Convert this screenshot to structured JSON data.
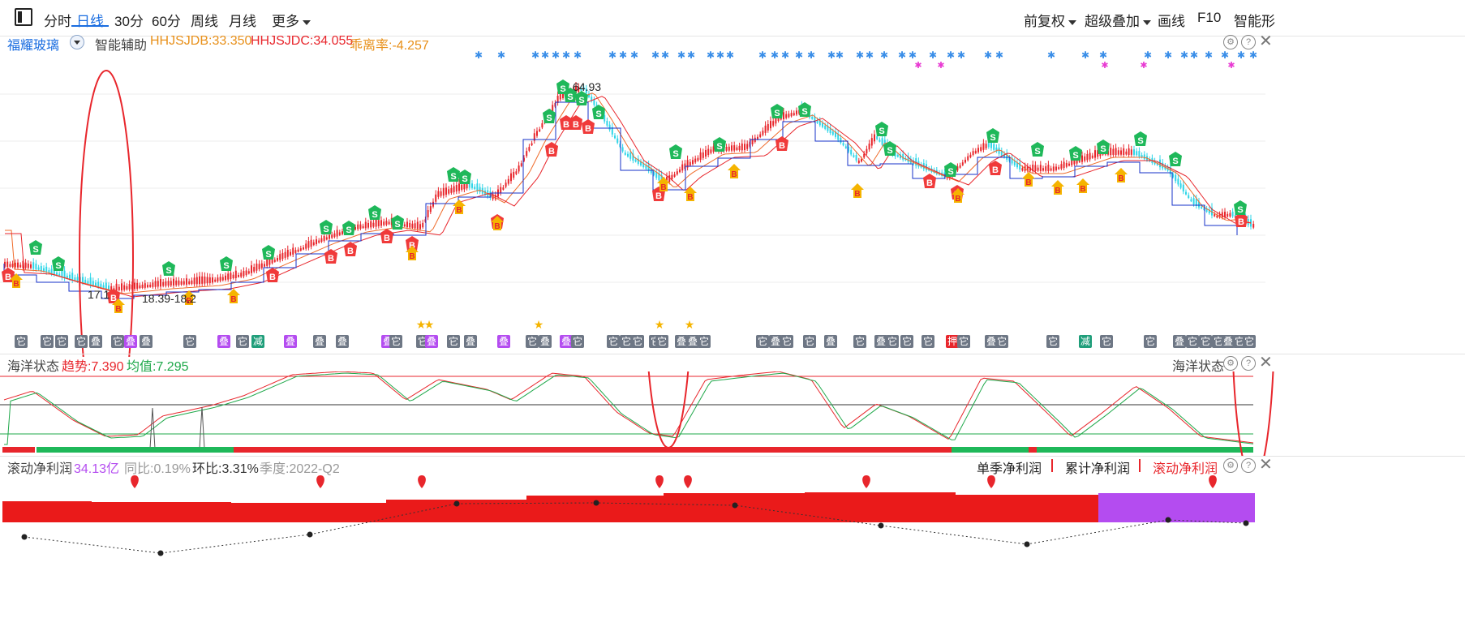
{
  "toolbar": {
    "left_items": [
      "分时",
      "日线",
      "30分",
      "60分",
      "周线",
      "月线",
      "更多"
    ],
    "active": "日线",
    "right_items": [
      "前复权",
      "超级叠加",
      "画线",
      "F10",
      "智能形"
    ]
  },
  "main_panel": {
    "stock_name": "福耀玻璃",
    "assist_label": "智能辅助",
    "hhjsjdb": "HHJSJDB:33.350",
    "hhjsjdc": "HHJSJDC:34.055",
    "deviation": "乖离率:-4.257",
    "high_label": "64.93",
    "low_label_1": "17.1",
    "low_label_2": "18.39-18.2",
    "signal_letter_b": "B",
    "signal_letter_s": "S"
  },
  "tag_row": {
    "tags": [
      "它",
      "它",
      "它",
      "它",
      "叠",
      "它",
      "叠",
      "叠",
      "它",
      "叠",
      "它",
      "减",
      "叠",
      "叠",
      "叠",
      "叠",
      "它",
      "它",
      "叠",
      "它",
      "叠",
      "叠",
      "它",
      "叠",
      "叠",
      "它",
      "它",
      "它",
      "它",
      "它",
      "它",
      "叠",
      "叠",
      "它",
      "它",
      "叠",
      "它",
      "它",
      "叠",
      "它",
      "叠",
      "它",
      "它",
      "它",
      "押",
      "它",
      "叠",
      "它",
      "它",
      "减",
      "它",
      "它",
      "叠",
      "它",
      "它",
      "它",
      "叠",
      "它",
      "它"
    ]
  },
  "ocean_panel": {
    "title": "海洋状态",
    "trend": "趋势:7.390",
    "mean": "均值:7.295",
    "right_title": "海洋状态"
  },
  "profit_panel": {
    "title": "滚动净利润",
    "value": "34.13亿",
    "yoy": "同比:0.19%",
    "qoq": "环比:3.31%",
    "season": "季度:2022-Q2",
    "tabs": [
      "单季净利润",
      "累计净利润",
      "滚动净利润"
    ],
    "active_tab": "滚动净利润"
  },
  "colors": {
    "accent": "#1a6de0",
    "up": "#e8262c",
    "down_cyan": "#2fd6e8",
    "buy": "#f03a3a",
    "sell": "#1fb85a",
    "gold": "#f5b400",
    "purple": "#b44cf0",
    "bar_red": "#ea1a1a"
  }
}
